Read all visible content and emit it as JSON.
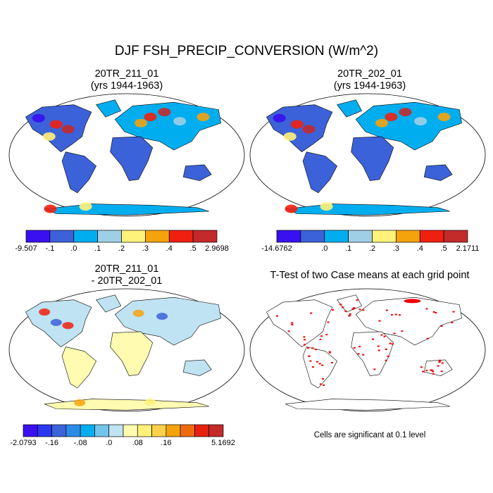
{
  "figure": {
    "title": "DJF FSH_PRECIP_CONVERSION (W/m^2)"
  },
  "panels": [
    {
      "title_line1": "20TR_211_01",
      "title_line2": "(yrs 1944-1963)",
      "colorbar": {
        "colors": [
          "#3a10f0",
          "#3c62d9",
          "#00aef0",
          "#9fcfe6",
          "#fff27a",
          "#f4a30d",
          "#f02010",
          "#c32a2a"
        ],
        "labels": [
          "-9.507",
          "-.1",
          ".0",
          ".1",
          ".2",
          ".3",
          ".4",
          ".5",
          "2.9698"
        ]
      }
    },
    {
      "title_line1": "20TR_202_01",
      "title_line2": "(yrs 1944-1963)",
      "colorbar": {
        "colors": [
          "#3a10f0",
          "#3c62d9",
          "#00aef0",
          "#9fcfe6",
          "#fff27a",
          "#f4a30d",
          "#f02010",
          "#c32a2a"
        ],
        "labels": [
          "-14.6762",
          "",
          ".0",
          ".1",
          ".2",
          ".3",
          ".4",
          ".5",
          "2.1711"
        ]
      }
    },
    {
      "title_line1": "20TR_211_01",
      "title_line2": "- 20TR_202_01",
      "colorbar": {
        "colors": [
          "#3a10f0",
          "#2a38f0",
          "#3c62d9",
          "#2a8ce6",
          "#00aef0",
          "#72c4ec",
          "#bfe3f2",
          "#fffbb0",
          "#fff27a",
          "#fdd24a",
          "#f4a30d",
          "#f06a0d",
          "#e82010",
          "#c32a2a"
        ],
        "labels": [
          "-2.0793",
          "",
          "-.16",
          "",
          "-.08",
          "",
          ".0",
          "",
          ".08",
          "",
          ".16",
          "",
          "",
          "",
          "5.1692"
        ]
      }
    },
    {
      "title_line1": "T-Test of two Case means at each grid point",
      "note": "Cells are significant at 0.1 level"
    }
  ]
}
